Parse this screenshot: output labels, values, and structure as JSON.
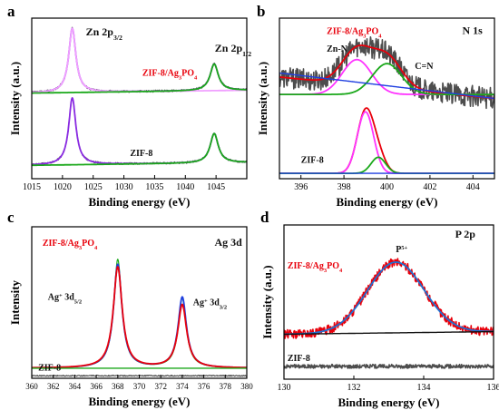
{
  "chart_data": [
    {
      "panel_letter": "a",
      "type": "line",
      "title": "Zn 2p",
      "xlabel": "Binding energy (eV)",
      "ylabel": "Intensity (a.u.)",
      "xlim": [
        1015,
        1050
      ],
      "xticks": [
        1015,
        1020,
        1025,
        1030,
        1035,
        1040,
        1045
      ],
      "ylim": [
        0,
        1.2
      ],
      "y_ticks_shown": false,
      "annotations": [
        {
          "text": "Zn 2p",
          "sub": "3/2",
          "x": 1023.8,
          "y": 1.07
        },
        {
          "text": "Zn 2p",
          "sub": "1/2",
          "x": 1044.8,
          "y": 0.95
        },
        {
          "text": "ZIF-8/Ag",
          "sub": "3",
          "after": "PO",
          "sub2": "4",
          "x": 1033.0,
          "y": 0.77,
          "color": "#e8000b"
        },
        {
          "text": "ZIF-8",
          "x": 1031.0,
          "y": 0.17
        }
      ],
      "peaks": [
        {
          "center": 1021.6,
          "fwhm": 1.4
        },
        {
          "center": 1044.7,
          "fwhm": 1.6
        }
      ],
      "series": [
        {
          "stack": "ZIF-8/Ag3PO4",
          "kind": "raw",
          "color": "#4d4d4d",
          "baseline": 0.64,
          "slope": 0.0006,
          "amps": [
            0.48,
            0.2
          ],
          "noise": 0.008
        },
        {
          "stack": "ZIF-8/Ag3PO4",
          "kind": "fit",
          "color": "#8a2be2",
          "baseline": 0.64,
          "slope": 0.0006,
          "amps": [
            0.48,
            0.2
          ]
        },
        {
          "stack": "ZIF-8/Ag3PO4",
          "kind": "component",
          "color": "#f0a0ff",
          "baseline": 0.64,
          "slope": 0.0006,
          "amps": [
            0.48,
            0
          ]
        },
        {
          "stack": "ZIF-8/Ag3PO4",
          "kind": "component",
          "color": "#1aa81a",
          "baseline": 0.64,
          "slope": 0.0006,
          "amps": [
            0,
            0.2
          ]
        },
        {
          "stack": "ZIF-8",
          "kind": "raw",
          "color": "#4d4d4d",
          "baseline": 0.1,
          "slope": 0.0006,
          "amps": [
            0.5,
            0.22
          ],
          "noise": 0.007
        },
        {
          "stack": "ZIF-8",
          "kind": "fit",
          "color": "#8a2be2",
          "baseline": 0.1,
          "slope": 0.0006,
          "amps": [
            0.5,
            0.22
          ]
        },
        {
          "stack": "ZIF-8",
          "kind": "component",
          "color": "#1aa81a",
          "baseline": 0.1,
          "slope": 0.0006,
          "amps": [
            0,
            0.22
          ]
        }
      ]
    },
    {
      "panel_letter": "b",
      "type": "line",
      "title": "N 1s",
      "xlabel": "Binding energy (eV)",
      "ylabel": "Intensity (a.u.)",
      "xlim": [
        395,
        405
      ],
      "xticks": [
        396,
        398,
        400,
        402,
        404
      ],
      "ylim": [
        0,
        1.2
      ],
      "y_ticks_shown": false,
      "annotations": [
        {
          "text": "ZIF-8/Ag",
          "sub": "3",
          "after": "PO",
          "sub2": "4",
          "x": 397.2,
          "y": 1.08,
          "color": "#e8000b"
        },
        {
          "text": "N 1s",
          "x": 403.5,
          "y": 1.08
        },
        {
          "text": "Zn-N",
          "x": 397.2,
          "y": 0.95
        },
        {
          "text": "C=N",
          "x": 401.3,
          "y": 0.82
        },
        {
          "text": "ZIF-8",
          "x": 396.0,
          "y": 0.12
        }
      ],
      "series": [
        {
          "stack": "ZIF-8/Ag3PO4",
          "kind": "raw",
          "color": "#4d4d4d",
          "baseline": 0.63,
          "amp1": 0.26,
          "amp2": 0.23,
          "noise": 0.08
        },
        {
          "stack": "ZIF-8/Ag3PO4",
          "kind": "fit",
          "color": "#e8000b",
          "baseline": 0.63,
          "amp1": 0.26,
          "amp2": 0.23
        },
        {
          "stack": "ZIF-8/Ag3PO4",
          "kind": "component",
          "color": "#ff33ff",
          "peak": 398.6,
          "fwhm": 1.6,
          "amp": 0.26,
          "baseline": 0.63
        },
        {
          "stack": "ZIF-8/Ag3PO4",
          "kind": "component",
          "color": "#1aa81a",
          "peak": 400.0,
          "fwhm": 1.6,
          "amp": 0.23,
          "baseline": 0.63
        },
        {
          "stack": "ZIF-8/Ag3PO4",
          "kind": "baseline",
          "color": "#1f3fe0",
          "y1": 0.79,
          "y2": 0.6
        },
        {
          "stack": "ZIF-8",
          "kind": "fit",
          "color": "#e8000b",
          "baseline": 0.04,
          "amp1": 0.46,
          "amp2": 0.12
        },
        {
          "stack": "ZIF-8",
          "kind": "component",
          "color": "#ff33ff",
          "peak": 399.0,
          "fwhm": 0.9,
          "amp": 0.46,
          "baseline": 0.04
        },
        {
          "stack": "ZIF-8",
          "kind": "component",
          "color": "#1aa81a",
          "peak": 399.6,
          "fwhm": 0.8,
          "amp": 0.12,
          "baseline": 0.04
        },
        {
          "stack": "ZIF-8",
          "kind": "baseline",
          "color": "#1f3fe0",
          "y1": 0.04,
          "y2": 0.04
        }
      ]
    },
    {
      "panel_letter": "c",
      "type": "line",
      "title": "Ag 3d",
      "xlabel": "Binding energy (eV)",
      "ylabel": "Intensity",
      "xlim": [
        360,
        380
      ],
      "xticks": [
        360,
        362,
        364,
        366,
        368,
        370,
        372,
        374,
        376,
        378,
        380
      ],
      "ylim": [
        0,
        1.2
      ],
      "y_ticks_shown": false,
      "annotations": [
        {
          "text": "ZIF-8/Ag",
          "sub": "3",
          "after": "PO",
          "sub2": "4",
          "x": 361.0,
          "y": 1.05,
          "color": "#e8000b"
        },
        {
          "text": "Ag 3d",
          "x": 377.0,
          "y": 1.05
        },
        {
          "text": "Ag",
          "sup": "+",
          "after": " 3d",
          "sub": "5/2",
          "x": 361.5,
          "y": 0.62
        },
        {
          "text": "Ag",
          "sup": "+",
          "after": " 3d",
          "sub": "3/2",
          "x": 375.0,
          "y": 0.58
        },
        {
          "text": "ZIF-8",
          "x": 360.6,
          "y": 0.06
        }
      ],
      "series": [
        {
          "stack": "ZIF-8/Ag3PO4",
          "kind": "raw",
          "color": "#1aa81a",
          "peaks": [
            {
              "center": 368.0,
              "fwhm": 0.9,
              "amp": 0.86
            },
            {
              "center": 374.0,
              "fwhm": 0.9,
              "amp": 0.55
            }
          ],
          "baseline": 0.08
        },
        {
          "stack": "ZIF-8/Ag3PO4",
          "kind": "fit",
          "color": "#1f3fe0",
          "peaks": [
            {
              "center": 368.0,
              "fwhm": 0.95,
              "amp": 0.82
            },
            {
              "center": 374.0,
              "fwhm": 0.95,
              "amp": 0.56
            }
          ],
          "baseline": 0.08
        },
        {
          "stack": "ZIF-8/Ag3PO4",
          "kind": "component",
          "color": "#e8000b",
          "peaks": [
            {
              "center": 368.0,
              "fwhm": 1.0,
              "amp": 0.8
            },
            {
              "center": 374.0,
              "fwhm": 1.0,
              "amp": 0.5
            }
          ],
          "baseline": 0.08
        },
        {
          "stack": "ZIF-8",
          "kind": "raw",
          "color": "#4d4d4d",
          "baseline": 0.02,
          "noise": 0.004
        },
        {
          "stack": "ZIF-8",
          "kind": "baseline",
          "color": "#1aa81a",
          "y1": 0.08,
          "y2": 0.08
        }
      ]
    },
    {
      "panel_letter": "d",
      "type": "line",
      "title": "P 2p",
      "xlabel": "Binding energy (eV)",
      "ylabel": "Intensity (a.u.)",
      "xlim": [
        130,
        136
      ],
      "xticks": [
        130,
        132,
        134,
        136
      ],
      "ylim": [
        0,
        1.2
      ],
      "y_ticks_shown": false,
      "annotations": [
        {
          "text": "ZIF-8/Ag",
          "sub": "3",
          "after": "PO",
          "sub2": "4",
          "x": 130.1,
          "y": 0.86,
          "color": "#e8000b"
        },
        {
          "text": "P 2p",
          "x": 134.9,
          "y": 1.1
        },
        {
          "text": "P",
          "sup": "5+",
          "x": 133.2,
          "y": 0.99
        },
        {
          "text": "ZIF-8",
          "x": 130.1,
          "y": 0.14
        }
      ],
      "series": [
        {
          "stack": "ZIF-8/Ag3PO4",
          "kind": "raw",
          "color": "#e8000b",
          "center": 133.2,
          "fwhm": 1.9,
          "amp": 0.55,
          "baseline_y1": 0.35,
          "baseline_y2": 0.37,
          "noise": 0.035
        },
        {
          "stack": "ZIF-8/Ag3PO4",
          "kind": "fit",
          "color": "#1f6fd0",
          "center": 133.2,
          "fwhm": 1.9,
          "amp": 0.55,
          "baseline_y1": 0.35,
          "baseline_y2": 0.37
        },
        {
          "stack": "ZIF-8/Ag3PO4",
          "kind": "baseline",
          "color": "#111111",
          "y1": 0.35,
          "y2": 0.37
        },
        {
          "stack": "ZIF-8",
          "kind": "raw",
          "color": "#4d4d4d",
          "baseline": 0.1,
          "noise": 0.015
        }
      ]
    }
  ]
}
